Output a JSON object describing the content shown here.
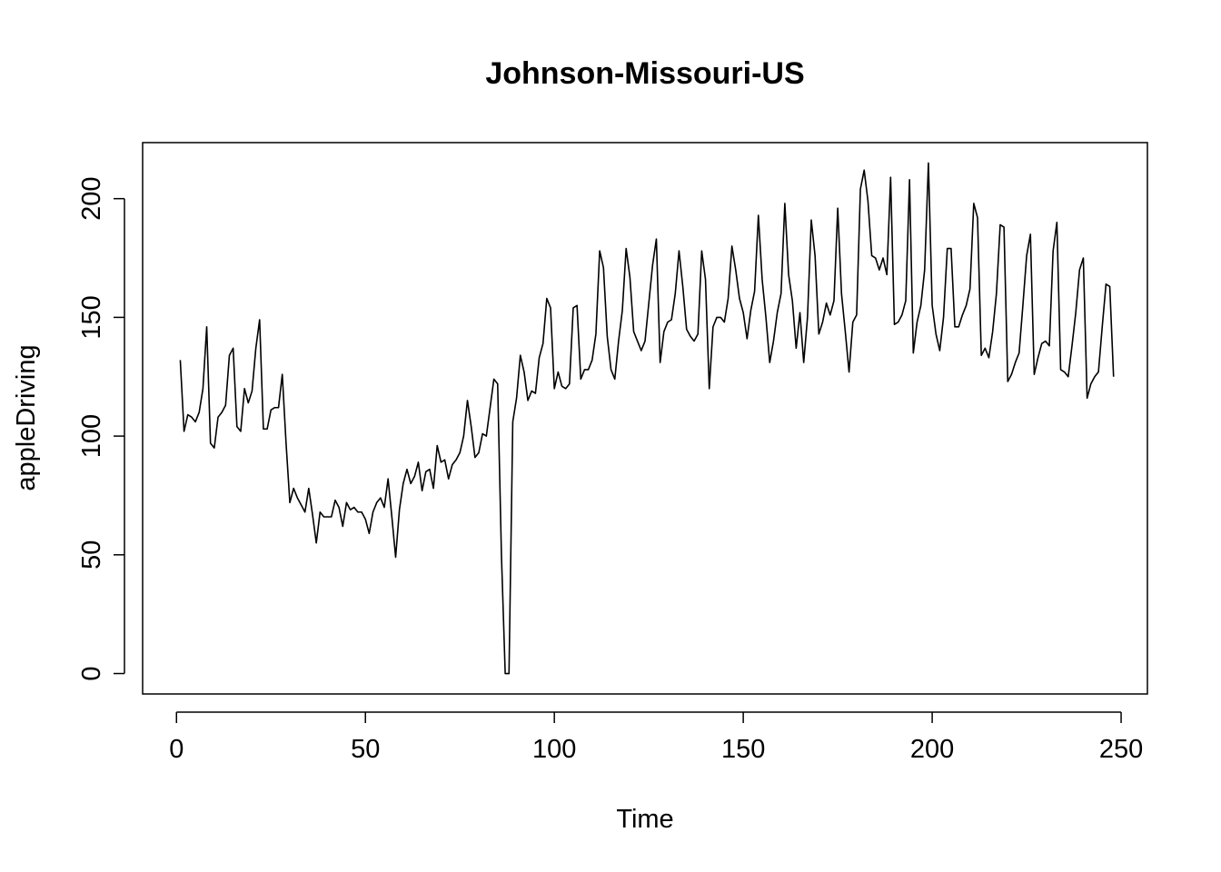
{
  "chart_data": {
    "type": "line",
    "title": "Johnson-Missouri-US",
    "xlabel": "Time",
    "ylabel": "appleDriving",
    "xlim": [
      -8.96,
      256.96
    ],
    "ylim": [
      -8.6,
      223.6
    ],
    "x_ticks": [
      0,
      50,
      100,
      150,
      200,
      250
    ],
    "y_ticks": [
      0,
      50,
      100,
      150,
      200
    ],
    "x_start": 1,
    "color": "#000000",
    "grid": false,
    "legend": "none",
    "series": [
      {
        "values": [
          132,
          102,
          109,
          108,
          106,
          110,
          120,
          146,
          97,
          95,
          108,
          110,
          113,
          134,
          137,
          104,
          102,
          120,
          114,
          119,
          137,
          149,
          103,
          103,
          111,
          112,
          112,
          126,
          97,
          72,
          78,
          74,
          71,
          68,
          78,
          67,
          55,
          68,
          66,
          66,
          66,
          73,
          70,
          62,
          72,
          69,
          70,
          68,
          68,
          65,
          59,
          68,
          72,
          74,
          70,
          82,
          66,
          49,
          69,
          80,
          86,
          80,
          83,
          89,
          77,
          85,
          86,
          78,
          96,
          89,
          90,
          82,
          88,
          90,
          93,
          100,
          115,
          104,
          91,
          93,
          101,
          100,
          112,
          124,
          122,
          50,
          0,
          0,
          106,
          116,
          134,
          127,
          115,
          119,
          118,
          133,
          139,
          158,
          154,
          120,
          127,
          121,
          120,
          122,
          154,
          155,
          124,
          128,
          128,
          132,
          143,
          178,
          171,
          142,
          128,
          124,
          140,
          153,
          179,
          167,
          144,
          140,
          136,
          140,
          156,
          172,
          183,
          131,
          144,
          148,
          149,
          160,
          178,
          163,
          145,
          142,
          140,
          143,
          178,
          166,
          120,
          146,
          150,
          150,
          148,
          158,
          180,
          170,
          158,
          152,
          141,
          153,
          161,
          193,
          166,
          150,
          131,
          140,
          152,
          160,
          198,
          168,
          157,
          137,
          152,
          131,
          150,
          191,
          176,
          143,
          148,
          156,
          151,
          157,
          196,
          160,
          144,
          127,
          148,
          151,
          204,
          212,
          199,
          176,
          175,
          170,
          175,
          168,
          209,
          147,
          148,
          151,
          157,
          208,
          135,
          148,
          155,
          170,
          215,
          155,
          143,
          136,
          150,
          179,
          179,
          146,
          146,
          151,
          155,
          162,
          198,
          192,
          134,
          137,
          133,
          144,
          160,
          189,
          188,
          123,
          126,
          131,
          135,
          155,
          176,
          185,
          126,
          133,
          139,
          140,
          138,
          178,
          190,
          128,
          127,
          125,
          138,
          152,
          170,
          175,
          116,
          122,
          125,
          127,
          146,
          164,
          163,
          125
        ]
      }
    ]
  }
}
